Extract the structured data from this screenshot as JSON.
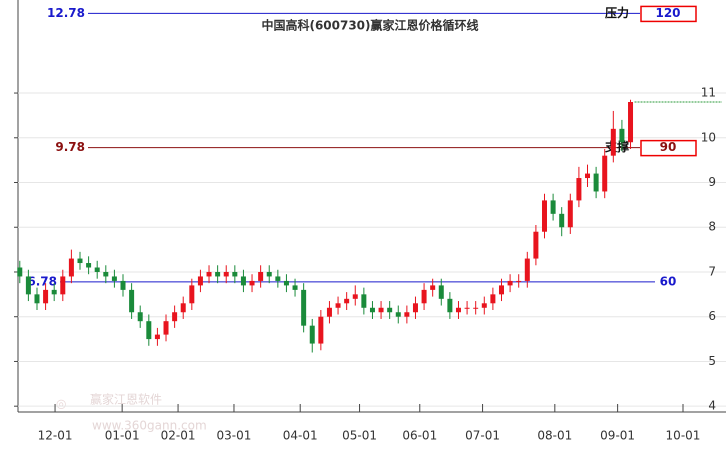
{
  "chart_data": {
    "type": "candlestick",
    "title": "中国高科(600730)赢家江恩价格循环线",
    "watermark": "赢家江恩软件",
    "watermark_url": "www.360gann.com",
    "up_color": "#e8141e",
    "down_color": "#1a8a3a",
    "open": [
      7.1,
      6.9,
      6.5,
      6.3,
      6.6,
      6.5,
      6.9,
      7.3,
      7.2,
      7.1,
      7.0,
      6.9,
      6.8,
      6.6,
      6.1,
      5.9,
      5.5,
      5.6,
      5.9,
      6.1,
      6.3,
      6.7,
      6.9,
      7.0,
      6.9,
      7.0,
      6.9,
      6.7,
      6.8,
      7.0,
      6.9,
      6.8,
      6.7,
      6.6,
      5.8,
      5.4,
      6.0,
      6.2,
      6.3,
      6.4,
      6.5,
      6.2,
      6.1,
      6.2,
      6.1,
      6.0,
      6.1,
      6.3,
      6.6,
      6.7,
      6.4,
      6.1,
      6.2,
      6.2,
      6.2,
      6.3,
      6.5,
      6.7,
      6.8,
      6.8,
      7.3,
      7.9,
      8.6,
      8.3,
      8.0,
      8.6,
      9.1,
      9.2,
      8.8,
      9.6,
      10.2,
      9.9
    ],
    "high": [
      7.25,
      7.05,
      6.65,
      6.75,
      6.75,
      7.05,
      7.5,
      7.45,
      7.35,
      7.25,
      7.15,
      7.05,
      6.95,
      6.75,
      6.25,
      6.05,
      5.75,
      6.05,
      6.25,
      6.45,
      6.85,
      7.05,
      7.15,
      7.15,
      7.15,
      7.15,
      7.05,
      6.95,
      7.15,
      7.15,
      7.05,
      6.95,
      6.85,
      6.75,
      5.95,
      6.15,
      6.35,
      6.45,
      6.55,
      6.7,
      6.65,
      6.35,
      6.35,
      6.35,
      6.25,
      6.25,
      6.45,
      6.75,
      6.85,
      6.85,
      6.55,
      6.35,
      6.35,
      6.35,
      6.45,
      6.65,
      6.85,
      6.95,
      6.95,
      7.45,
      8.05,
      8.75,
      8.75,
      8.45,
      8.75,
      9.35,
      9.4,
      9.35,
      9.75,
      10.6,
      10.4,
      10.85
    ],
    "low": [
      6.75,
      6.35,
      6.15,
      6.15,
      6.35,
      6.35,
      6.75,
      7.05,
      6.95,
      6.85,
      6.75,
      6.65,
      6.45,
      5.95,
      5.75,
      5.35,
      5.35,
      5.45,
      5.75,
      5.95,
      6.15,
      6.55,
      6.75,
      6.75,
      6.75,
      6.75,
      6.55,
      6.55,
      6.65,
      6.75,
      6.65,
      6.55,
      6.45,
      5.65,
      5.2,
      5.25,
      5.85,
      6.05,
      6.15,
      6.25,
      6.05,
      5.95,
      5.95,
      5.95,
      5.85,
      5.85,
      5.95,
      6.15,
      6.45,
      6.25,
      5.95,
      5.95,
      6.05,
      6.05,
      6.05,
      6.15,
      6.35,
      6.55,
      6.65,
      6.65,
      7.15,
      7.75,
      8.15,
      7.8,
      7.85,
      8.45,
      8.9,
      8.65,
      8.65,
      9.45,
      9.7,
      9.75
    ],
    "close": [
      6.9,
      6.5,
      6.3,
      6.6,
      6.5,
      6.9,
      7.3,
      7.2,
      7.1,
      7.0,
      6.9,
      6.8,
      6.6,
      6.1,
      5.9,
      5.5,
      5.6,
      5.9,
      6.1,
      6.3,
      6.7,
      6.9,
      7.0,
      6.9,
      7.0,
      6.9,
      6.7,
      6.8,
      7.0,
      6.9,
      6.8,
      6.7,
      6.6,
      5.8,
      5.4,
      6.0,
      6.2,
      6.3,
      6.4,
      6.5,
      6.2,
      6.1,
      6.2,
      6.1,
      6.0,
      6.1,
      6.3,
      6.6,
      6.7,
      6.4,
      6.1,
      6.2,
      6.2,
      6.2,
      6.3,
      6.5,
      6.7,
      6.8,
      6.8,
      7.3,
      7.9,
      8.6,
      8.3,
      8.0,
      8.6,
      9.1,
      9.2,
      8.8,
      9.6,
      10.2,
      9.9,
      10.8
    ],
    "xlim": [
      -2.3,
      82.1
    ],
    "xticks": [
      {
        "value": 4.1,
        "label": "12-01"
      },
      {
        "value": 11.9,
        "label": "01-01"
      },
      {
        "value": 18.4,
        "label": "02-01"
      },
      {
        "value": 24.9,
        "label": "03-01"
      },
      {
        "value": 32.6,
        "label": "04-01"
      },
      {
        "value": 39.5,
        "label": "05-01"
      },
      {
        "value": 46.5,
        "label": "06-01"
      },
      {
        "value": 53.8,
        "label": "07-01"
      },
      {
        "value": 62.2,
        "label": "08-01"
      },
      {
        "value": 69.5,
        "label": "09-01"
      },
      {
        "value": 77.1,
        "label": "10-01"
      }
    ],
    "ylim": [
      3.87,
      13.08
    ],
    "yticks": [
      4,
      5,
      6,
      7,
      8,
      9,
      10,
      11
    ],
    "grid": true,
    "levels": [
      {
        "value": 12.78,
        "label": "12.78",
        "degree": 120,
        "tag": "压力",
        "color": "#1a1acc",
        "boxed": true
      },
      {
        "value": 9.78,
        "label": "9.78",
        "degree": 90,
        "tag": "支撑",
        "color": "#8b1010",
        "boxed": true
      },
      {
        "value": 6.78,
        "label": "6.78",
        "degree": 60,
        "color": "#1a1acc",
        "boxed": false
      }
    ]
  }
}
